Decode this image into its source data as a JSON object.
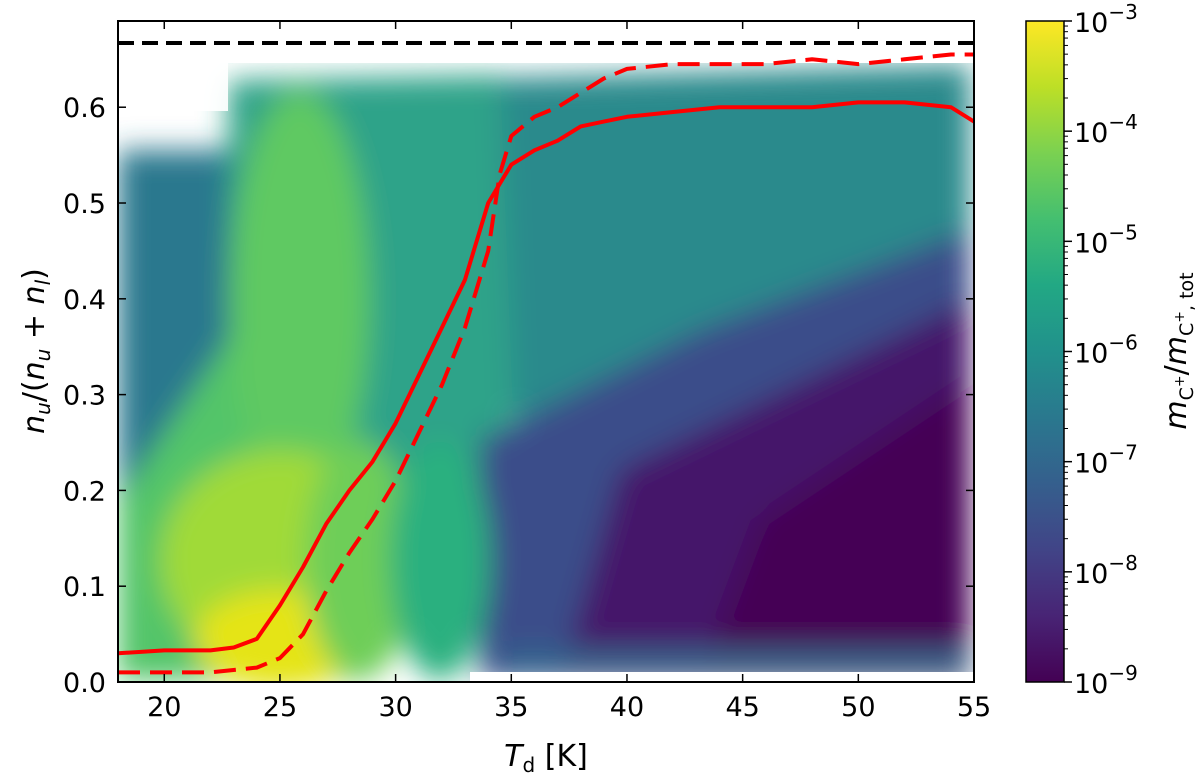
{
  "chart_data": {
    "type": "heatmap",
    "title": "",
    "xlabel": "T_d [K]",
    "ylabel": "n_u/(n_u + n_l)",
    "xlim": [
      18,
      55
    ],
    "ylim": [
      0,
      0.69
    ],
    "xticks": [
      20,
      25,
      30,
      35,
      40,
      45,
      50,
      55
    ],
    "xtick_labels": [
      "20",
      "25",
      "30",
      "35",
      "40",
      "45",
      "50",
      "55"
    ],
    "yticks": [
      0.0,
      0.1,
      0.2,
      0.3,
      0.4,
      0.5,
      0.6
    ],
    "ytick_labels": [
      "0.0",
      "0.1",
      "0.2",
      "0.3",
      "0.4",
      "0.5",
      "0.6"
    ],
    "grid": false,
    "colormap": "viridis",
    "colorbar": {
      "label": "m_C+/m_C+,tot",
      "scale": "log",
      "range": [
        1e-09,
        0.001
      ],
      "ticks": [
        1e-09,
        1e-08,
        1e-07,
        1e-06,
        1e-05,
        0.0001,
        0.001
      ],
      "tick_exponents": [
        "−9",
        "−8",
        "−7",
        "−6",
        "−5",
        "−4",
        "−3"
      ],
      "tick_base": "10"
    },
    "reference_line": {
      "y": 0.667,
      "style": "dashed",
      "color": "#000000"
    },
    "series": [
      {
        "style": "solid",
        "color": "#ff0000",
        "x": [
          18,
          20,
          22,
          23,
          24,
          25,
          26,
          27,
          28,
          29,
          30,
          31,
          32,
          33,
          33.5,
          34,
          34.5,
          35,
          36,
          37,
          38,
          39,
          40,
          42,
          44,
          46,
          48,
          50,
          52,
          54,
          55
        ],
        "y": [
          0.03,
          0.033,
          0.033,
          0.036,
          0.045,
          0.08,
          0.12,
          0.165,
          0.2,
          0.23,
          0.27,
          0.32,
          0.37,
          0.42,
          0.46,
          0.5,
          0.52,
          0.54,
          0.555,
          0.565,
          0.58,
          0.585,
          0.59,
          0.595,
          0.6,
          0.6,
          0.6,
          0.605,
          0.605,
          0.6,
          0.585
        ]
      },
      {
        "style": "dashed",
        "color": "#ff0000",
        "x": [
          18,
          22,
          24,
          25,
          26,
          27,
          28,
          29,
          30,
          31,
          32,
          33,
          34,
          34.5,
          35,
          36,
          37,
          38,
          39,
          40,
          42,
          44,
          46,
          48,
          50,
          52,
          54,
          55
        ],
        "y": [
          0.01,
          0.01,
          0.015,
          0.025,
          0.05,
          0.095,
          0.135,
          0.17,
          0.21,
          0.26,
          0.31,
          0.37,
          0.45,
          0.53,
          0.57,
          0.59,
          0.6,
          0.615,
          0.63,
          0.64,
          0.645,
          0.645,
          0.645,
          0.65,
          0.645,
          0.65,
          0.655,
          0.655
        ]
      }
    ]
  }
}
